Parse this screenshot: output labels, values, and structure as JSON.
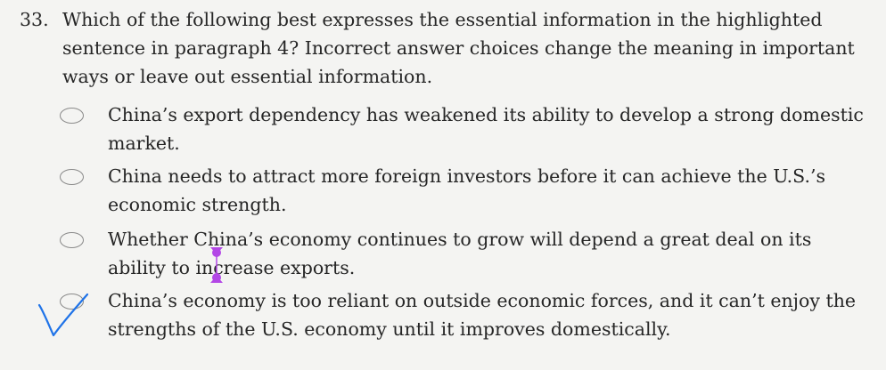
{
  "question": {
    "number": "33.",
    "text": "Which of the following best expresses the essential information in the highlighted sentence in paragraph 4? Incorrect answer choices change the meaning in important ways or leave out essential information."
  },
  "options": [
    {
      "text": "China’s export dependency has weakened its ability to develop a strong domestic market."
    },
    {
      "text": "China needs to attract more foreign investors before it can achieve the U.S.’s economic strength."
    },
    {
      "text": "Whether China’s economy continues to grow will depend a great deal on its ability to increase exports."
    },
    {
      "text": "China’s economy is too reliant on outside economic forces, and it can’t enjoy the strengths of the U.S. economy until it improves domestically."
    }
  ],
  "colors": {
    "checkmark": "#1f73e8",
    "selection_handle": "#b347e6"
  },
  "icons": {
    "checkmark": "hand-drawn-checkmark-icon",
    "selection_handle": "text-selection-handle-icon"
  }
}
